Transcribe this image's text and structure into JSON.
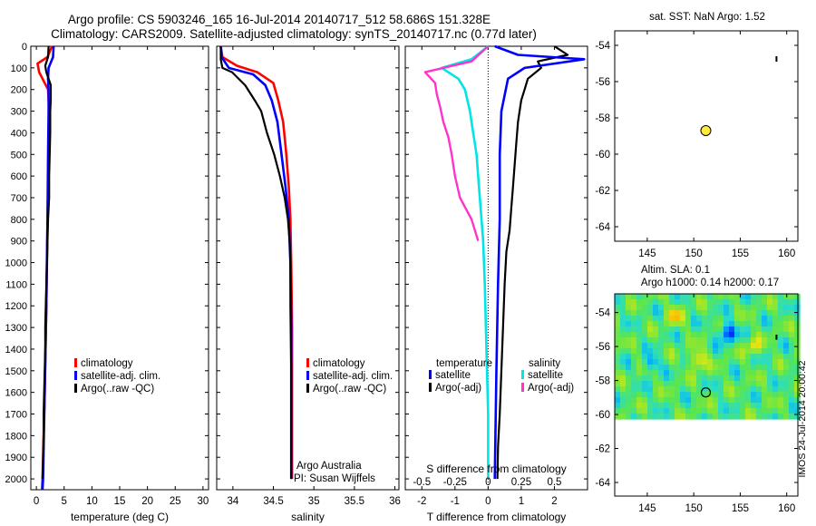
{
  "header": {
    "title_line1": "Argo profile: CS 5903246_165 16-Jul-2014 20140717_512 58.686S 151.328E",
    "title_line2": "Climatology: CARS2009. Satellite-adjusted climatology: synTS_20140717.nc (0.77d later)"
  },
  "colors": {
    "climatology": "#ff0000",
    "satellite": "#0000ff",
    "argo": "#000000",
    "satellite_salinity": "#00e5e5",
    "argo_salinity": "#ff33cc",
    "float_marker": "#ffeb3b"
  },
  "chart_data": [
    {
      "id": "temperature",
      "type": "line",
      "xlabel": "temperature (deg C)",
      "ylabel": "",
      "xlim": [
        -1,
        31
      ],
      "ylim": [
        2050,
        0
      ],
      "xticks": [
        0,
        5,
        10,
        15,
        20,
        25,
        30
      ],
      "yticks": [
        0,
        100,
        200,
        300,
        400,
        500,
        600,
        700,
        800,
        900,
        1000,
        1100,
        1200,
        1300,
        1400,
        1500,
        1600,
        1700,
        1800,
        1900,
        2000
      ],
      "legend": [
        "climatology",
        "satellite-adj. clim.",
        "Argo(..raw -QC)"
      ],
      "series": [
        {
          "name": "climatology",
          "color_key": "climatology",
          "points": [
            [
              2.8,
              0
            ],
            [
              2.0,
              50
            ],
            [
              0.2,
              80
            ],
            [
              0.5,
              120
            ],
            [
              2.1,
              200
            ],
            [
              2.3,
              300
            ],
            [
              2.2,
              500
            ],
            [
              2.0,
              800
            ],
            [
              1.8,
              1200
            ],
            [
              1.5,
              1600
            ],
            [
              1.1,
              2000
            ],
            [
              1.0,
              2050
            ]
          ]
        },
        {
          "name": "satellite-adj. clim.",
          "color_key": "satellite",
          "points": [
            [
              3.1,
              0
            ],
            [
              3.0,
              50
            ],
            [
              2.2,
              100
            ],
            [
              2.1,
              150
            ],
            [
              2.2,
              200
            ],
            [
              2.2,
              300
            ],
            [
              2.1,
              500
            ],
            [
              2.0,
              800
            ],
            [
              1.8,
              1200
            ],
            [
              1.5,
              1600
            ],
            [
              1.2,
              2000
            ],
            [
              1.1,
              2050
            ]
          ]
        },
        {
          "name": "Argo(..raw -QC)",
          "color_key": "argo",
          "points": [
            [
              2.2,
              0
            ],
            [
              2.1,
              50
            ],
            [
              1.6,
              90
            ],
            [
              1.8,
              120
            ],
            [
              2.6,
              180
            ],
            [
              2.6,
              250
            ],
            [
              2.5,
              300
            ],
            [
              2.5,
              400
            ],
            [
              2.4,
              500
            ],
            [
              2.3,
              600
            ],
            [
              2.3,
              700
            ],
            [
              2.1,
              800
            ],
            [
              2.0,
              900
            ],
            [
              1.9,
              1000
            ],
            [
              1.8,
              1100
            ],
            [
              1.7,
              1200
            ],
            [
              1.6,
              1300
            ],
            [
              1.6,
              1400
            ],
            [
              1.5,
              1500
            ],
            [
              1.4,
              1600
            ],
            [
              1.3,
              1700
            ],
            [
              1.3,
              1800
            ],
            [
              1.2,
              1900
            ],
            [
              1.1,
              2000
            ]
          ]
        }
      ]
    },
    {
      "id": "salinity",
      "type": "line",
      "xlabel": "salinity",
      "ylabel": "",
      "xlim": [
        33.8,
        36.05
      ],
      "ylim": [
        2050,
        0
      ],
      "xticks": [
        34,
        34.5,
        35,
        35.5,
        36
      ],
      "legend": [
        "climatology",
        "satellite-adj. clim.",
        "Argo(..raw -QC)"
      ],
      "series": [
        {
          "name": "climatology",
          "color_key": "climatology",
          "points": [
            [
              33.85,
              0
            ],
            [
              33.87,
              50
            ],
            [
              34.05,
              90
            ],
            [
              34.3,
              120
            ],
            [
              34.5,
              170
            ],
            [
              34.56,
              250
            ],
            [
              34.62,
              350
            ],
            [
              34.66,
              500
            ],
            [
              34.69,
              650
            ],
            [
              34.71,
              800
            ],
            [
              34.72,
              1000
            ],
            [
              34.73,
              1300
            ],
            [
              34.73,
              1600
            ],
            [
              34.73,
              2000
            ]
          ]
        },
        {
          "name": "satellite-adj. clim.",
          "color_key": "satellite",
          "points": [
            [
              33.85,
              0
            ],
            [
              33.86,
              50
            ],
            [
              33.95,
              100
            ],
            [
              34.25,
              130
            ],
            [
              34.4,
              180
            ],
            [
              34.48,
              250
            ],
            [
              34.55,
              350
            ],
            [
              34.6,
              500
            ],
            [
              34.65,
              650
            ],
            [
              34.69,
              800
            ],
            [
              34.71,
              1000
            ],
            [
              34.72,
              1300
            ],
            [
              34.72,
              1600
            ],
            [
              34.72,
              2000
            ]
          ]
        },
        {
          "name": "Argo(..raw -QC)",
          "color_key": "argo",
          "points": [
            [
              33.85,
              0
            ],
            [
              33.85,
              60
            ],
            [
              33.87,
              100
            ],
            [
              33.99,
              120
            ],
            [
              34.15,
              180
            ],
            [
              34.27,
              250
            ],
            [
              34.35,
              300
            ],
            [
              34.42,
              400
            ],
            [
              34.51,
              500
            ],
            [
              34.58,
              600
            ],
            [
              34.64,
              700
            ],
            [
              34.68,
              800
            ],
            [
              34.7,
              900
            ],
            [
              34.71,
              1000
            ],
            [
              34.71,
              1200
            ],
            [
              34.72,
              1500
            ],
            [
              34.72,
              1800
            ],
            [
              34.72,
              2000
            ]
          ]
        }
      ],
      "annotation_line1": "Argo Australia",
      "annotation_line2": "PI: Susan Wijffels"
    },
    {
      "id": "difference",
      "type": "line",
      "xlabel": "T difference from climatology",
      "xlabel_top": "S difference from climatology",
      "ylabel": "",
      "xlim": [
        -2.5,
        3.0
      ],
      "ylim": [
        2050,
        0
      ],
      "xticks": [
        -2,
        -1,
        0,
        1,
        2
      ],
      "xtick_labels": [
        "-2",
        "-1",
        "0",
        "1",
        "2"
      ],
      "sticks": [
        -0.5,
        -0.25,
        0,
        0.25,
        0.5
      ],
      "stick_labels": [
        "-0.5",
        "-0.25",
        "0",
        "0.25",
        "0.5"
      ],
      "legend_temperature_title": "temperature",
      "legend_salinity_title": "salinity",
      "legend_temperature": [
        "satellite",
        "Argo(-adj)"
      ],
      "legend_salinity": [
        "satellite",
        "Argo(-adj)"
      ],
      "series": [
        {
          "name": "satellite",
          "group": "temperature",
          "color_key": "satellite",
          "points": [
            [
              0.2,
              0
            ],
            [
              0.9,
              40
            ],
            [
              2.9,
              60
            ],
            [
              1.1,
              100
            ],
            [
              0.6,
              150
            ],
            [
              0.4,
              300
            ],
            [
              0.35,
              500
            ],
            [
              0.35,
              800
            ],
            [
              0.3,
              1100
            ],
            [
              0.25,
              1500
            ],
            [
              0.2,
              2000
            ]
          ]
        },
        {
          "name": "Argo(-adj)",
          "group": "temperature",
          "color_key": "argo",
          "points": [
            [
              2.0,
              0
            ],
            [
              2.4,
              40
            ],
            [
              1.5,
              70
            ],
            [
              1.6,
              100
            ],
            [
              1.2,
              150
            ],
            [
              1.1,
              200
            ],
            [
              1.0,
              250
            ],
            [
              0.9,
              350
            ],
            [
              0.85,
              450
            ],
            [
              0.8,
              550
            ],
            [
              0.75,
              650
            ],
            [
              0.7,
              750
            ],
            [
              0.65,
              850
            ],
            [
              0.55,
              950
            ],
            [
              0.5,
              1100
            ],
            [
              0.45,
              1300
            ],
            [
              0.4,
              1500
            ],
            [
              0.35,
              1700
            ],
            [
              0.3,
              1850
            ],
            [
              0.28,
              2000
            ]
          ]
        },
        {
          "name": "satellite",
          "group": "salinity",
          "color_key": "satellite_salinity",
          "points": [
            [
              0.0,
              0
            ],
            [
              -0.5,
              60
            ],
            [
              -1.4,
              100
            ],
            [
              -0.9,
              150
            ],
            [
              -0.7,
              200
            ],
            [
              -0.55,
              300
            ],
            [
              -0.45,
              400
            ],
            [
              -0.35,
              500
            ],
            [
              -0.25,
              700
            ],
            [
              -0.15,
              900
            ],
            [
              -0.1,
              1100
            ],
            [
              -0.05,
              1400
            ],
            [
              0,
              1700
            ],
            [
              0,
              2000
            ]
          ]
        },
        {
          "name": "Argo(-adj)",
          "group": "salinity",
          "color_key": "argo_salinity",
          "points": [
            [
              0,
              0
            ],
            [
              -0.5,
              70
            ],
            [
              -1.9,
              120
            ],
            [
              -1.6,
              170
            ],
            [
              -1.55,
              220
            ],
            [
              -1.45,
              280
            ],
            [
              -1.35,
              350
            ],
            [
              -1.2,
              420
            ],
            [
              -1.1,
              500
            ],
            [
              -1.0,
              600
            ],
            [
              -0.85,
              700
            ],
            [
              -0.5,
              800
            ],
            [
              -0.3,
              900
            ]
          ]
        }
      ]
    },
    {
      "id": "sst_map",
      "type": "scatter",
      "title": "sat. SST: NaN Argo: 1.52",
      "xlim": [
        141.5,
        161.2
      ],
      "ylim": [
        -64.8,
        -53.2
      ],
      "xticks": [
        145,
        150,
        155,
        160
      ],
      "yticks": [
        -54,
        -56,
        -58,
        -60,
        -62,
        -64
      ],
      "float_position": [
        151.3,
        -58.7
      ]
    },
    {
      "id": "sla_map",
      "type": "heatmap",
      "title_line1": "Altim. SLA: 0.1",
      "title_line2": "Argo h1000: 0.14 h2000: 0.17",
      "xlim": [
        141.5,
        161.2
      ],
      "ylim": [
        -64.8,
        -52.9
      ],
      "xticks": [
        145,
        150,
        155,
        160
      ],
      "yticks": [
        -54,
        -56,
        -58,
        -60,
        -62,
        -64
      ],
      "data_extent": {
        "lon": [
          141.5,
          161.2
        ],
        "lat": [
          -60.0,
          -52.9
        ]
      },
      "float_position": [
        151.3,
        -58.7
      ],
      "eddies": [
        {
          "lon": 153.6,
          "lat": -55.2,
          "sign": -1,
          "size": 1.1
        },
        {
          "lon": 150.5,
          "lat": -56.8,
          "sign": 1,
          "size": 1.0
        },
        {
          "lon": 148.0,
          "lat": -54.2,
          "sign": 1,
          "size": 0.9
        },
        {
          "lon": 156.5,
          "lat": -56.0,
          "sign": 1,
          "size": 0.8
        },
        {
          "lon": 145.5,
          "lat": -57.0,
          "sign": -1,
          "size": 0.8
        }
      ]
    }
  ],
  "side_label": "IMOS 24-Jul-2014 20:00:42"
}
